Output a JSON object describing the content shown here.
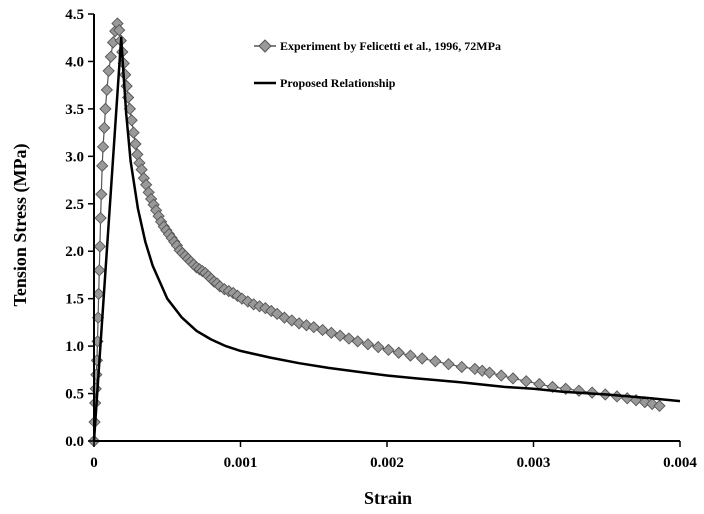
{
  "chart_data": {
    "type": "scatter",
    "title": "",
    "xlabel": "Strain",
    "ylabel": "Tension Stress (MPa)",
    "xlim": [
      0,
      0.004
    ],
    "ylim": [
      0,
      4.5
    ],
    "x_ticks": [
      0,
      0.001,
      0.002,
      0.003,
      0.004
    ],
    "x_tick_labels": [
      "0",
      "0.001",
      "0.002",
      "0.003",
      "0.004"
    ],
    "y_ticks": [
      0,
      0.5,
      1,
      1.5,
      2,
      2.5,
      3,
      3.5,
      4,
      4.5
    ],
    "y_tick_labels": [
      "0.0",
      "0.5",
      "1.0",
      "1.5",
      "2.0",
      "2.5",
      "3.0",
      "3.5",
      "4.0",
      "4.5"
    ],
    "grid": false,
    "legend_position": "top-right",
    "series": [
      {
        "name": "Experiment by Felicetti et al., 1996, 72MPa",
        "style": "line-with-diamond-markers",
        "color": "#999999",
        "line_color": "#555555",
        "x": [
          0,
          4e-06,
          8e-06,
          1.2e-05,
          1.6e-05,
          2e-05,
          2.4e-05,
          2.8e-05,
          3.2e-05,
          3.6e-05,
          4e-05,
          4.5e-05,
          5e-05,
          5.6e-05,
          6.2e-05,
          7e-05,
          7.8e-05,
          8.8e-05,
          0.0001,
          0.000115,
          0.00013,
          0.000145,
          0.00016,
          0.000172,
          0.000183,
          0.000193,
          0.000203,
          0.000213,
          0.000223,
          0.000233,
          0.000245,
          0.000257,
          0.00027,
          0.000283,
          0.000296,
          0.00031,
          0.000325,
          0.00034,
          0.000356,
          0.000373,
          0.00039,
          0.000407,
          0.000424,
          0.000441,
          0.000458,
          0.000476,
          0.000494,
          0.000512,
          0.00053,
          0.000548,
          0.000566,
          0.000585,
          0.000604,
          0.000623,
          0.000642,
          0.000661,
          0.00068,
          0.0007,
          0.00072,
          0.00074,
          0.00076,
          0.00078,
          0.0008,
          0.00082,
          0.00084,
          0.00086,
          0.00089,
          0.00092,
          0.00095,
          0.00098,
          0.00101,
          0.00105,
          0.00109,
          0.00113,
          0.00117,
          0.00121,
          0.00125,
          0.0013,
          0.00135,
          0.0014,
          0.00145,
          0.0015,
          0.00156,
          0.00162,
          0.00168,
          0.00174,
          0.0018,
          0.00187,
          0.00194,
          0.00201,
          0.00208,
          0.00216,
          0.00224,
          0.00233,
          0.00242,
          0.00251,
          0.0026,
          0.00265,
          0.0027,
          0.00278,
          0.00286,
          0.00295,
          0.00304,
          0.00313,
          0.00322,
          0.00331,
          0.0034,
          0.00349,
          0.00357,
          0.00364,
          0.0037,
          0.00376,
          0.00381,
          0.00386
        ],
        "y": [
          0,
          0.2,
          0.4,
          0.55,
          0.7,
          0.85,
          1.05,
          1.3,
          1.55,
          1.8,
          2.05,
          2.35,
          2.6,
          2.9,
          3.1,
          3.3,
          3.5,
          3.7,
          3.9,
          4.05,
          4.2,
          4.32,
          4.4,
          4.33,
          4.22,
          4.1,
          3.98,
          3.86,
          3.74,
          3.62,
          3.5,
          3.38,
          3.25,
          3.13,
          3.02,
          2.93,
          2.86,
          2.77,
          2.7,
          2.62,
          2.55,
          2.49,
          2.43,
          2.37,
          2.31,
          2.26,
          2.22,
          2.18,
          2.14,
          2.1,
          2.06,
          2.01,
          1.98,
          1.95,
          1.92,
          1.89,
          1.86,
          1.83,
          1.81,
          1.79,
          1.77,
          1.74,
          1.71,
          1.68,
          1.66,
          1.63,
          1.6,
          1.58,
          1.56,
          1.53,
          1.5,
          1.47,
          1.44,
          1.42,
          1.4,
          1.37,
          1.34,
          1.3,
          1.27,
          1.24,
          1.22,
          1.2,
          1.17,
          1.14,
          1.11,
          1.08,
          1.05,
          1.02,
          0.99,
          0.96,
          0.93,
          0.9,
          0.87,
          0.84,
          0.81,
          0.78,
          0.76,
          0.74,
          0.72,
          0.69,
          0.66,
          0.63,
          0.6,
          0.57,
          0.55,
          0.53,
          0.51,
          0.49,
          0.47,
          0.45,
          0.43,
          0.41,
          0.39,
          0.37
        ]
      },
      {
        "name": "Proposed Relationship",
        "style": "line",
        "color": "#000000",
        "x": [
          0,
          0.000186,
          0.0002,
          0.00022,
          0.00025,
          0.0003,
          0.00035,
          0.0004,
          0.0005,
          0.0006,
          0.0007,
          0.0008,
          0.0009,
          0.001,
          0.0012,
          0.0014,
          0.0016,
          0.0018,
          0.002,
          0.0022,
          0.0025,
          0.0028,
          0.003,
          0.0032,
          0.0035,
          0.0038,
          0.004
        ],
        "y": [
          0,
          4.25,
          3.9,
          3.45,
          2.95,
          2.45,
          2.1,
          1.85,
          1.5,
          1.3,
          1.16,
          1.07,
          1.0,
          0.95,
          0.88,
          0.82,
          0.77,
          0.73,
          0.69,
          0.66,
          0.62,
          0.57,
          0.55,
          0.52,
          0.49,
          0.45,
          0.42
        ]
      }
    ]
  }
}
